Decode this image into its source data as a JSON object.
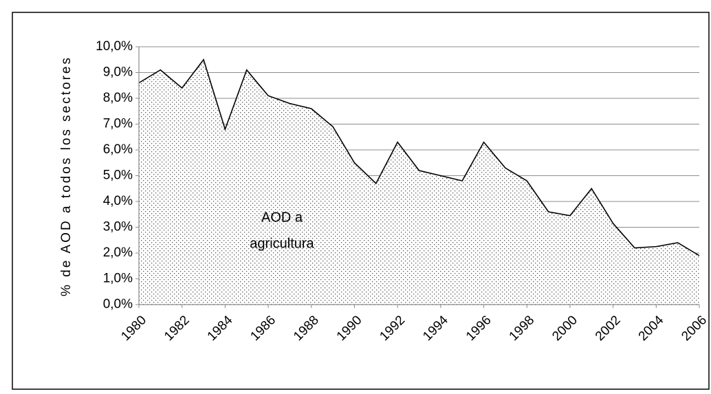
{
  "chart_data": {
    "type": "area",
    "y_label": "% de AOD a todos los sectores",
    "annotation": [
      "AOD a",
      "agricultura"
    ],
    "x": [
      1980,
      1981,
      1982,
      1983,
      1984,
      1985,
      1986,
      1987,
      1988,
      1989,
      1990,
      1991,
      1992,
      1993,
      1994,
      1995,
      1996,
      1997,
      1998,
      1999,
      2000,
      2001,
      2002,
      2003,
      2004,
      2005,
      2006
    ],
    "values": [
      8.6,
      9.1,
      8.4,
      9.5,
      6.8,
      9.1,
      8.1,
      7.8,
      7.6,
      6.9,
      5.5,
      4.7,
      6.3,
      5.2,
      5.0,
      4.8,
      6.3,
      5.3,
      4.8,
      3.6,
      3.45,
      4.5,
      3.15,
      2.2,
      2.25,
      2.4,
      1.9
    ],
    "color": "#000000",
    "xlim": [
      1980,
      2006
    ],
    "xticks": [
      1980,
      1982,
      1984,
      1986,
      1988,
      1990,
      1992,
      1994,
      1996,
      1998,
      2000,
      2002,
      2004,
      2006
    ],
    "ylim": [
      0,
      10
    ],
    "yticks": [
      {
        "value": 0,
        "label": "0,0%"
      },
      {
        "value": 1,
        "label": "1,0%"
      },
      {
        "value": 2,
        "label": "2,0%"
      },
      {
        "value": 3,
        "label": "3,0%"
      },
      {
        "value": 4,
        "label": "4,0%"
      },
      {
        "value": 5,
        "label": "5,0%"
      },
      {
        "value": 6,
        "label": "6,0%"
      },
      {
        "value": 7,
        "label": "7,0%"
      },
      {
        "value": 8,
        "label": "8,0%"
      },
      {
        "value": 9,
        "label": "9,0%"
      },
      {
        "value": 10,
        "label": "10,0%"
      }
    ],
    "grid": true
  }
}
